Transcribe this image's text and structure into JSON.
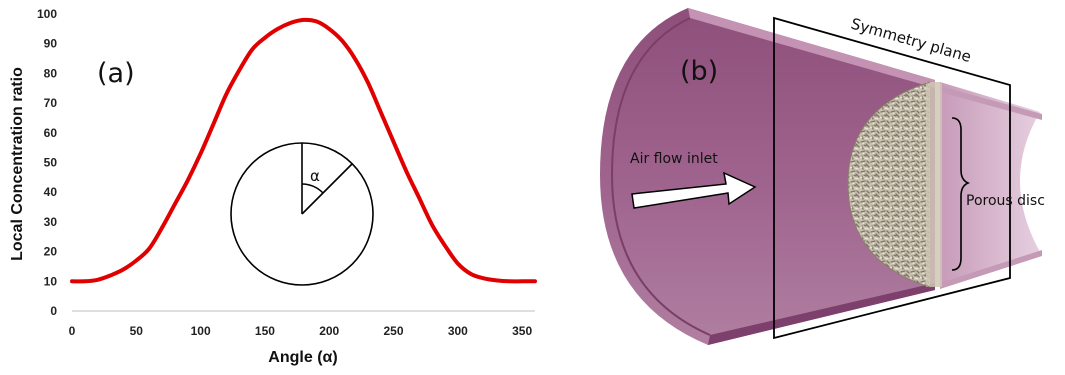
{
  "chart_data": {
    "type": "line",
    "panel_label": "(a)",
    "xlabel": "Angle (α)",
    "ylabel": "Local Concentration ratio",
    "xlim": [
      0,
      360
    ],
    "ylim": [
      0,
      100
    ],
    "xticks": [
      0,
      50,
      100,
      150,
      200,
      250,
      300,
      350
    ],
    "yticks": [
      0,
      10,
      20,
      30,
      40,
      50,
      60,
      70,
      80,
      90,
      100
    ],
    "grid": false,
    "inset_label": "α",
    "series": [
      {
        "color": "#e00000",
        "x": [
          0,
          10,
          20,
          30,
          40,
          50,
          60,
          70,
          80,
          90,
          100,
          110,
          120,
          130,
          140,
          150,
          160,
          170,
          180,
          190,
          200,
          210,
          220,
          230,
          240,
          250,
          260,
          270,
          280,
          290,
          300,
          310,
          320,
          330,
          340,
          350,
          360
        ],
        "y": [
          10,
          10,
          10.5,
          12,
          14,
          17,
          21,
          28,
          36,
          44,
          53,
          63,
          73,
          81,
          88,
          92,
          95,
          97,
          98,
          97.5,
          95,
          91,
          85,
          77,
          67,
          57,
          47,
          38,
          29,
          22,
          16,
          12.5,
          11,
          10.3,
          10,
          10,
          10
        ]
      }
    ]
  },
  "diagram": {
    "panel_label": "(b)",
    "labels": {
      "symmetry_plane": "Symmetry plane",
      "air_flow_inlet": "Air flow inlet",
      "porous_disc": "Porous disc"
    },
    "colors": {
      "pipe": "#9b5b85",
      "pipe_light": "#c99cbb",
      "disc": "#b7ae9c"
    }
  }
}
